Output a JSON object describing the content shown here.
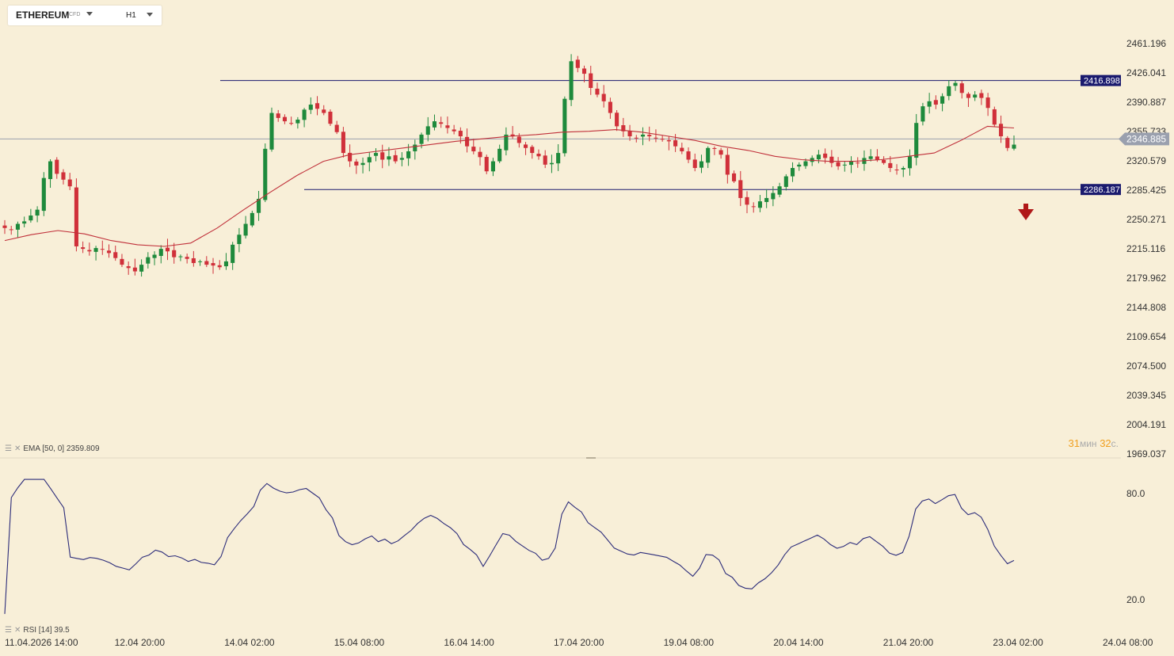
{
  "toolbar": {
    "symbol": "ETHEREUM",
    "symbol_sub": "CFD",
    "timeframe": "H1"
  },
  "indicators": {
    "ema_label": "EMA [50, 0] 2359.809",
    "rsi_label": "RSI [14] 39.5"
  },
  "timer": {
    "minutes": "31",
    "min_unit": "мин",
    "seconds": "32",
    "sec_unit": "с."
  },
  "colors": {
    "background": "#f8efd8",
    "up": "#1e8a3c",
    "down": "#d0303a",
    "ema": "#c0303a",
    "rsi": "#2c2c7a",
    "level": "#1a1a6e",
    "current": "#9aa0ae",
    "timer": "#f0a020"
  },
  "icons": {
    "caret": "chevron-down-icon",
    "signal": "red-down-arrow-icon",
    "legend": "settings-close-icon"
  },
  "chart_data": {
    "type": "candlestick",
    "price_ticks": [
      "2461.196",
      "2426.041",
      "2390.887",
      "2355.733",
      "2320.579",
      "2285.425",
      "2250.271",
      "2215.116",
      "2179.962",
      "2144.808",
      "2109.654",
      "2074.500",
      "2039.345",
      "2004.191",
      "1969.037"
    ],
    "time_ticks": [
      "11.04.2026 14:00",
      "12.04 20:00",
      "14.04 02:00",
      "15.04 08:00",
      "16.04 14:00",
      "17.04 20:00",
      "19.04 08:00",
      "20.04 14:00",
      "21.04 20:00",
      "23.04 02:00",
      "24.04 08:00"
    ],
    "ylim": [
      1969.037,
      2461.196
    ],
    "levels": [
      {
        "label": "2416.898",
        "value": 2416.898
      },
      {
        "label": "2286.187",
        "value": 2286.187
      }
    ],
    "current_price": {
      "label": "2346.885",
      "value": 2346.885
    },
    "rsi_ticks": [
      "80.0",
      "20.0"
    ],
    "rsi_range": [
      20,
      80
    ],
    "close_path": [
      2240,
      2238,
      2245,
      2248,
      2255,
      2262,
      2300,
      2320,
      2305,
      2298,
      2290,
      2218,
      2215,
      2212,
      2216,
      2214,
      2210,
      2204,
      2196,
      2192,
      2188,
      2196,
      2205,
      2208,
      2215,
      2212,
      2205,
      2206,
      2203,
      2198,
      2200,
      2196,
      2195,
      2193,
      2200,
      2220,
      2232,
      2245,
      2258,
      2275,
      2335,
      2378,
      2372,
      2368,
      2366,
      2370,
      2382,
      2388,
      2383,
      2378,
      2365,
      2355,
      2330,
      2320,
      2315,
      2318,
      2325,
      2330,
      2322,
      2326,
      2320,
      2324,
      2332,
      2340,
      2352,
      2362,
      2368,
      2365,
      2360,
      2356,
      2350,
      2338,
      2332,
      2325,
      2308,
      2320,
      2335,
      2352,
      2350,
      2342,
      2336,
      2330,
      2326,
      2316,
      2318,
      2330,
      2395,
      2440,
      2432,
      2425,
      2408,
      2400,
      2392,
      2378,
      2362,
      2356,
      2350,
      2348,
      2352,
      2350,
      2348,
      2346,
      2344,
      2338,
      2332,
      2322,
      2312,
      2320,
      2336,
      2335,
      2328,
      2304,
      2296,
      2276,
      2268,
      2266,
      2272,
      2276,
      2282,
      2290,
      2302,
      2312,
      2316,
      2320,
      2324,
      2328,
      2324,
      2318,
      2314,
      2316,
      2320,
      2318,
      2324,
      2326,
      2322,
      2318,
      2312,
      2310,
      2312,
      2326,
      2366,
      2386,
      2392,
      2388,
      2398,
      2410,
      2414,
      2402,
      2396,
      2400,
      2396,
      2384,
      2364,
      2350,
      2336,
      2340
    ],
    "ema_path": [
      2225,
      2232,
      2237,
      2233,
      2225,
      2220,
      2218,
      2222,
      2240,
      2262,
      2283,
      2303,
      2320,
      2328,
      2332,
      2336,
      2340,
      2344,
      2347,
      2350,
      2352,
      2355,
      2356,
      2358,
      2355,
      2350,
      2345,
      2338,
      2333,
      2326,
      2322,
      2320,
      2320,
      2322,
      2326,
      2330,
      2345,
      2362,
      2360
    ]
  }
}
